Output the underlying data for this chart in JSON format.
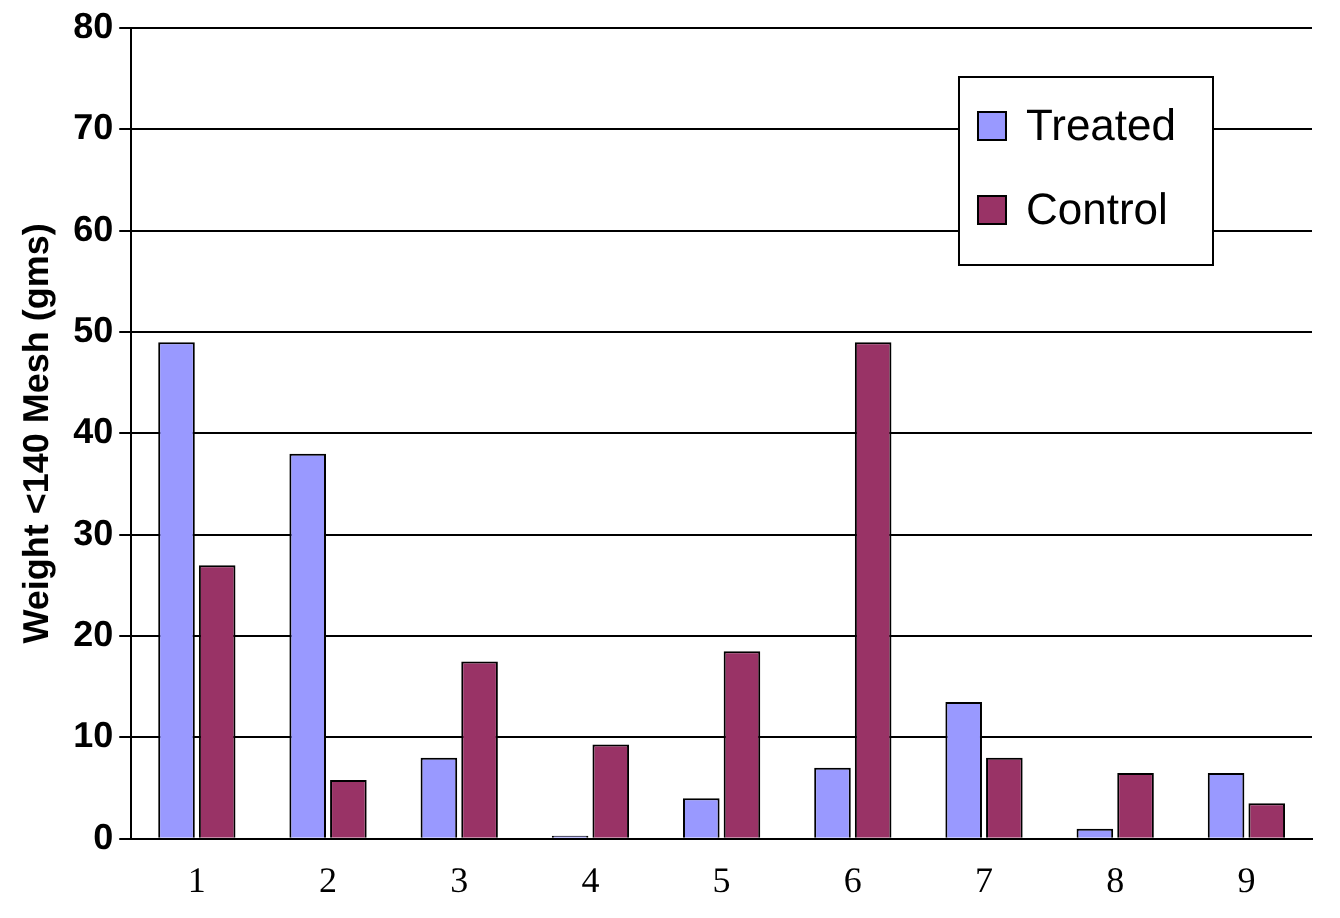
{
  "chart_data": {
    "type": "bar",
    "ylabel": "Weight <140 Mesh (gms)",
    "categories": [
      "1",
      "2",
      "3",
      "4",
      "5",
      "6",
      "7",
      "8",
      "9"
    ],
    "series": [
      {
        "name": "Treated",
        "color": "#9999ff",
        "values": [
          49,
          38,
          8,
          0.3,
          4,
          7,
          13.5,
          1,
          6.5
        ]
      },
      {
        "name": "Control",
        "color": "#993366",
        "values": [
          27,
          5.8,
          17.5,
          9.3,
          18.5,
          49,
          8,
          6.5,
          3.5
        ]
      }
    ],
    "ylim": [
      0,
      80
    ],
    "yticks": [
      0,
      10,
      20,
      30,
      40,
      50,
      60,
      70,
      80
    ],
    "grid": "y",
    "legend": "top right"
  }
}
